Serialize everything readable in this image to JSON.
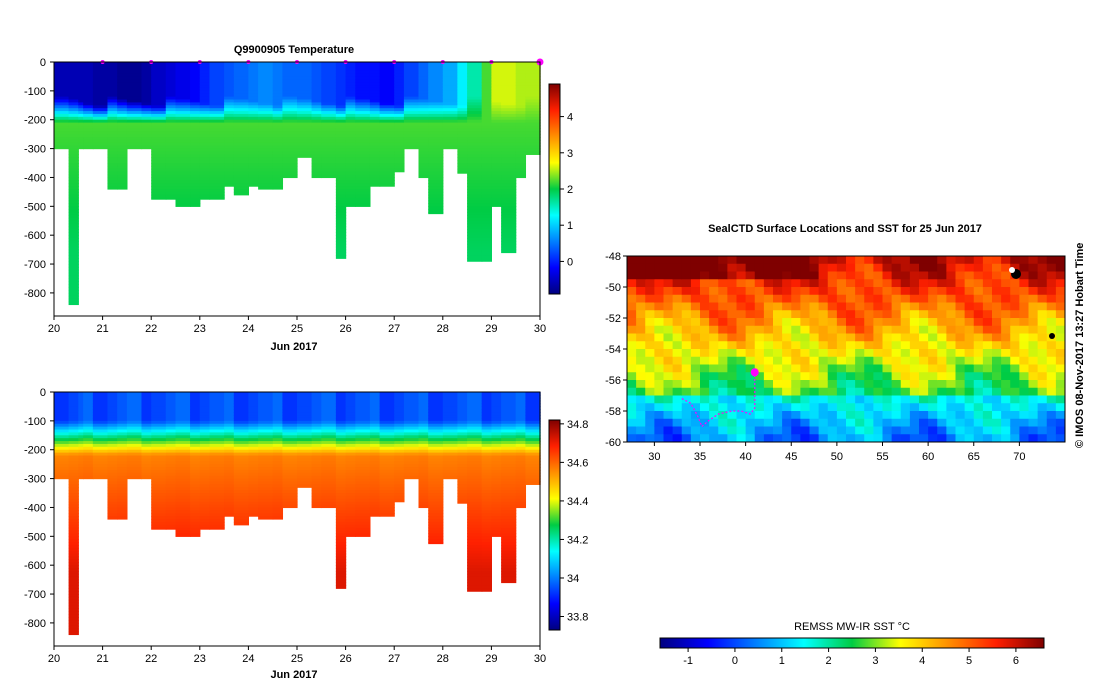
{
  "figure": {
    "stamp": "© IMOS 08-Nov-2017 13:27 Hobart Time"
  },
  "chart_data": [
    {
      "id": "temperature",
      "type": "heatmap",
      "title": "Q9900905  Temperature",
      "xlabel": "Jun 2017",
      "ylabel": "",
      "xlim": [
        20,
        30
      ],
      "ylim": [
        -880,
        0
      ],
      "x_ticks": [
        20,
        21,
        22,
        23,
        24,
        25,
        26,
        27,
        28,
        29,
        30
      ],
      "y_ticks": [
        0,
        -100,
        -200,
        -300,
        -400,
        -500,
        -600,
        -700,
        -800
      ],
      "profile_markers_x": [
        21,
        22,
        23,
        24,
        25,
        26,
        27,
        28,
        29,
        30
      ],
      "colorbar": {
        "min": -0.9,
        "max": 4.9,
        "ticks": [
          0,
          1,
          2,
          3,
          4
        ]
      },
      "profiles_x": [
        20.0,
        20.3,
        20.5,
        20.6,
        20.8,
        21.1,
        21.3,
        21.5,
        21.8,
        22.0,
        22.3,
        22.5,
        22.8,
        23.0,
        23.2,
        23.5,
        23.7,
        24.0,
        24.2,
        24.5,
        24.7,
        25.0,
        25.3,
        25.5,
        25.8,
        26.0,
        26.2,
        26.5,
        26.7,
        27.0,
        27.2,
        27.5,
        27.7,
        28.0,
        28.3,
        28.5,
        28.8,
        29.0,
        29.2,
        29.5,
        29.7,
        30.0
      ],
      "profile_max_depth": [
        300,
        840,
        300,
        300,
        300,
        440,
        440,
        300,
        300,
        475,
        475,
        500,
        500,
        475,
        475,
        430,
        460,
        430,
        440,
        440,
        400,
        330,
        400,
        400,
        680,
        500,
        500,
        430,
        430,
        380,
        300,
        400,
        525,
        300,
        385,
        690,
        690,
        500,
        660,
        400,
        320,
        320
      ],
      "surface_temp": [
        -0.6,
        -0.6,
        -0.6,
        -0.6,
        -0.7,
        -0.7,
        -0.8,
        -0.8,
        -0.7,
        -0.5,
        -0.4,
        -0.3,
        -0.2,
        0.0,
        0.2,
        0.3,
        0.4,
        0.5,
        0.6,
        0.5,
        0.4,
        0.4,
        0.3,
        0.2,
        0.1,
        0.0,
        -0.1,
        -0.1,
        -0.2,
        0.0,
        0.2,
        0.4,
        0.6,
        0.8,
        1.2,
        1.6,
        2.2,
        2.6,
        2.6,
        2.5,
        2.5,
        2.5
      ],
      "deep_temp": 2.2
    },
    {
      "id": "salinity",
      "type": "heatmap",
      "title": "",
      "xlabel": "Jun 2017",
      "ylabel": "",
      "xlim": [
        20,
        30
      ],
      "ylim": [
        -880,
        0
      ],
      "x_ticks": [
        20,
        21,
        22,
        23,
        24,
        25,
        26,
        27,
        28,
        29,
        30
      ],
      "y_ticks": [
        0,
        -100,
        -200,
        -300,
        -400,
        -500,
        -600,
        -700,
        -800
      ],
      "colorbar": {
        "min": 33.73,
        "max": 34.82,
        "ticks": [
          33.8,
          34,
          34.2,
          34.4,
          34.6,
          34.8
        ]
      },
      "surface_salinity": 33.95,
      "deep_salinity": 34.72
    },
    {
      "id": "sst_map",
      "type": "heatmap",
      "title": "SealCTD Surface Locations and SST for 25 Jun 2017",
      "xlabel": "",
      "ylabel": "",
      "xlim": [
        27,
        75
      ],
      "ylim": [
        -60,
        -48
      ],
      "x_ticks": [
        30,
        35,
        40,
        45,
        50,
        55,
        60,
        65,
        70
      ],
      "y_ticks": [
        -48,
        -50,
        -52,
        -54,
        -56,
        -58,
        -60
      ],
      "current_position": [
        41,
        -55.5
      ],
      "track": [
        [
          33,
          -57.2
        ],
        [
          34,
          -57.5
        ],
        [
          34.8,
          -58.4
        ],
        [
          35.2,
          -59.0
        ],
        [
          36,
          -58.6
        ],
        [
          37,
          -58.2
        ],
        [
          38.5,
          -58.0
        ],
        [
          39.5,
          -58.0
        ],
        [
          40.5,
          -58.2
        ],
        [
          41,
          -57.8
        ],
        [
          41,
          -57.0
        ],
        [
          41,
          -55.5
        ]
      ],
      "colorbar": {
        "label": "REMSS MW-IR SST °C",
        "min": -1.6,
        "max": 6.6,
        "ticks": [
          -1,
          0,
          1,
          2,
          3,
          4,
          5,
          6
        ]
      }
    }
  ]
}
